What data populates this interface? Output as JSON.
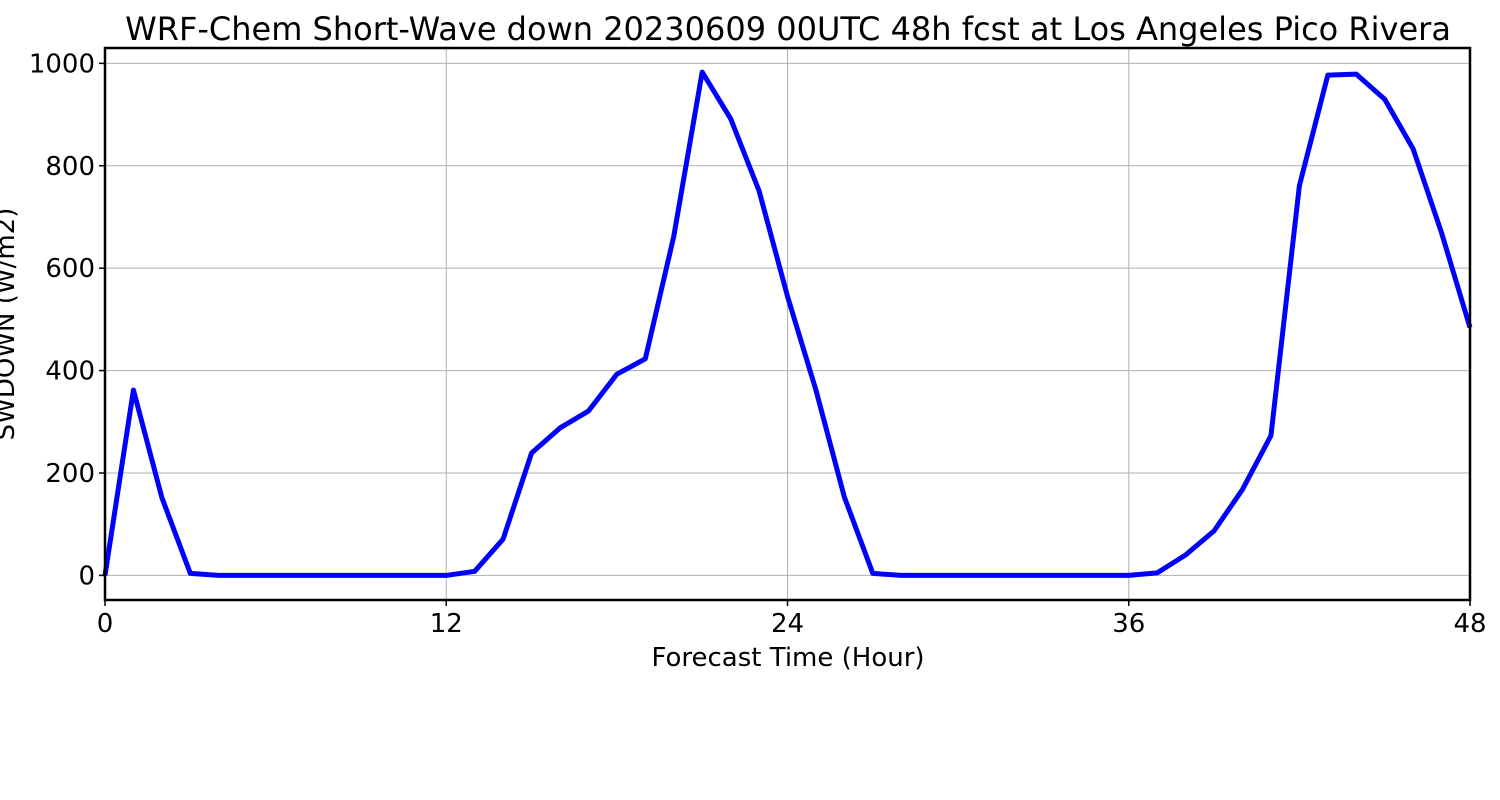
{
  "chart_data": {
    "type": "line",
    "title": "WRF-Chem Short-Wave down  20230609 00UTC 48h fcst at Los Angeles Pico Rivera",
    "xlabel": "Forecast Time (Hour)",
    "ylabel": "SWDOWN  (W/m2)",
    "xlim": [
      0,
      48
    ],
    "ylim": [
      -48,
      1030
    ],
    "xticks": [
      0,
      12,
      24,
      36,
      48
    ],
    "yticks": [
      0,
      200,
      400,
      600,
      800,
      1000
    ],
    "grid": true,
    "line_color": "#0000ff",
    "series": [
      {
        "x": [
          0,
          1,
          2,
          3,
          4,
          5,
          6,
          7,
          8,
          9,
          10,
          11,
          12,
          13,
          14,
          15,
          16,
          17,
          18,
          19,
          20,
          21,
          22,
          23,
          24,
          25,
          26,
          27,
          28,
          29,
          30,
          31,
          32,
          33,
          34,
          35,
          36,
          37,
          38,
          39,
          40,
          41,
          42,
          43,
          44,
          45,
          46,
          47,
          48
        ],
        "values": [
          0,
          362,
          152,
          4,
          0,
          0,
          0,
          0,
          0,
          0,
          0,
          0,
          0,
          8,
          71,
          239,
          288,
          321,
          393,
          423,
          662,
          983,
          892,
          751,
          545,
          362,
          153,
          4,
          0,
          0,
          0,
          0,
          0,
          0,
          0,
          0,
          0,
          5,
          40,
          87,
          168,
          273,
          761,
          977,
          979,
          930,
          833,
          669,
          484
        ]
      }
    ]
  }
}
